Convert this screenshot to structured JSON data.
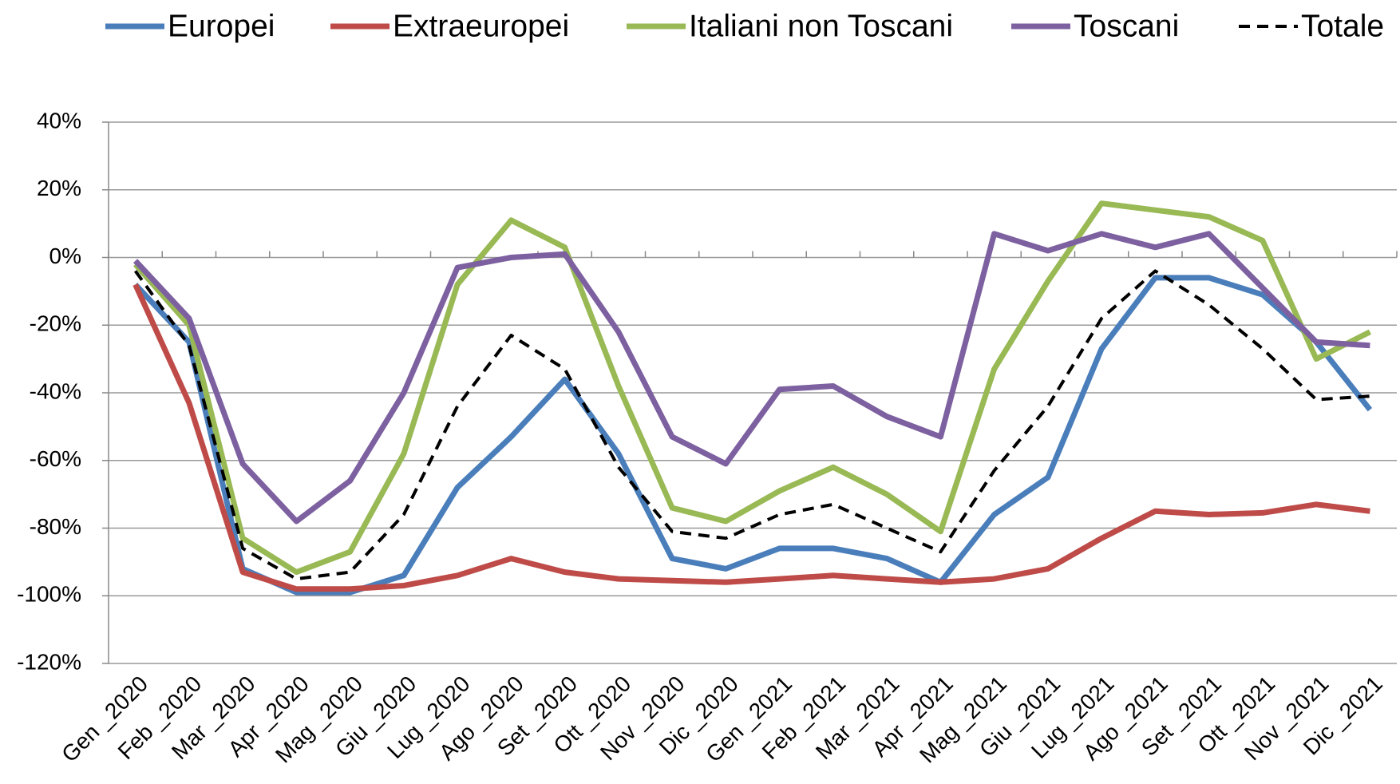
{
  "chart_data": {
    "type": "line",
    "categories": [
      "Gen _2020",
      "Feb _2020",
      "Mar _2020",
      "Apr _2020",
      "Mag _2020",
      "Giu _2020",
      "Lug _2020",
      "Ago _2020",
      "Set _2020",
      "Ott _2020",
      "Nov _2020",
      "Dic _2020",
      "Gen _2021",
      "Feb _2021",
      "Mar _2021",
      "Apr _2021",
      "Mag _2021",
      "Giu _2021",
      "Lug _2021",
      "Ago _2021",
      "Set _2021",
      "Ott _2021",
      "Nov _2021",
      "Dic _2021"
    ],
    "series": [
      {
        "name": "Europei",
        "color": "#4a7ebb",
        "values": [
          -8,
          -25,
          -92,
          -99,
          -99,
          -94,
          -68,
          -53,
          -36,
          -58,
          -89,
          -92,
          -86,
          -86,
          -89,
          -96,
          -76,
          -65,
          -27,
          -6,
          -6,
          -11,
          -25,
          -45
        ]
      },
      {
        "name": "Extraeuropei",
        "color": "#be4b48",
        "values": [
          -8,
          -43,
          -93,
          -98,
          -98,
          -97,
          -94,
          -89,
          -93,
          -95,
          -95.5,
          -96,
          -95,
          -94,
          -95,
          -96,
          -95,
          -92,
          -83,
          -75,
          -76,
          -75.5,
          -73,
          -75
        ]
      },
      {
        "name": "Italiani non Toscani",
        "color": "#98b954",
        "values": [
          -2,
          -20,
          -83,
          -93,
          -87,
          -58,
          -8,
          11,
          3,
          -38,
          -74,
          -78,
          -69,
          -62,
          -70,
          -81,
          -33,
          -7,
          16,
          14,
          12,
          5,
          -30,
          -22
        ]
      },
      {
        "name": "Toscani",
        "color": "#7d60a0",
        "values": [
          -1,
          -18,
          -61,
          -78,
          -66,
          -40,
          -3,
          0,
          1,
          -22,
          -53,
          -61,
          -39,
          -38,
          -47,
          -53,
          7,
          2,
          7,
          3,
          7,
          -9,
          -25,
          -26
        ]
      },
      {
        "name": "Totale",
        "color": "#000000",
        "dashed": true,
        "values": [
          -4,
          -26,
          -86,
          -95,
          -93,
          -76,
          -44,
          -23,
          -33,
          -62,
          -81,
          -83,
          -76,
          -73,
          -80,
          -87,
          -63,
          -44,
          -18,
          -4,
          -14,
          -27,
          -42,
          -41
        ]
      }
    ],
    "ylim": [
      -120,
      40
    ],
    "yticks": [
      {
        "value": -120,
        "label": "-120%"
      },
      {
        "value": -100,
        "label": "-100%"
      },
      {
        "value": -80,
        "label": "-80%"
      },
      {
        "value": -60,
        "label": "-60%"
      },
      {
        "value": -40,
        "label": "-40%"
      },
      {
        "value": -20,
        "label": "-20%"
      },
      {
        "value": 0,
        "label": "0%"
      },
      {
        "value": 20,
        "label": "20%"
      },
      {
        "value": 40,
        "label": "40%"
      }
    ],
    "grid": true,
    "legend": "top"
  }
}
